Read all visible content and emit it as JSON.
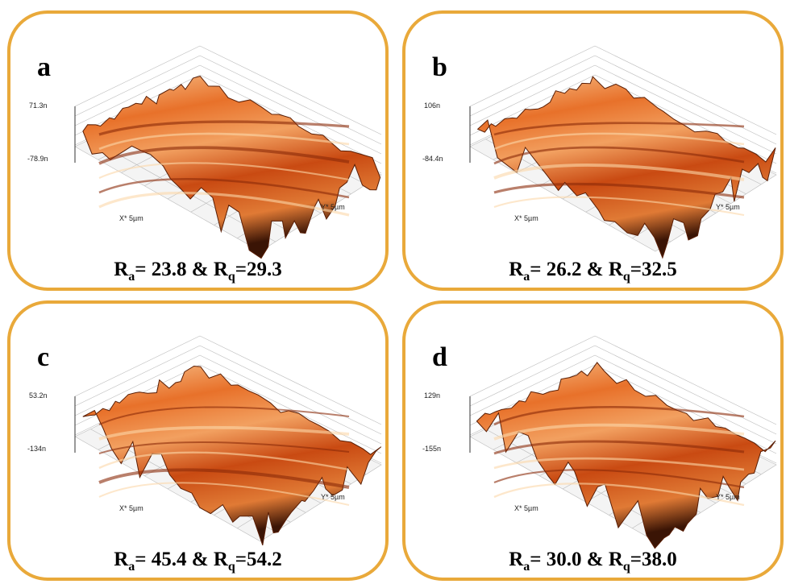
{
  "panels": [
    {
      "label": "a",
      "z_top": "71.3n",
      "z_bottom": "-78.9n",
      "x_axis": "X* 5µm",
      "y_axis": "Y* 5µm",
      "caption": {
        "r1": "R",
        "sub1": "a",
        "mid": "= 23.8 & R",
        "sub2": "q",
        "end": "=29.3"
      }
    },
    {
      "label": "b",
      "z_top": "106n",
      "z_bottom": "-84.4n",
      "x_axis": "X* 5µm",
      "y_axis": "Y* 5µm",
      "caption": {
        "r1": "R",
        "sub1": "a",
        "mid": "= 26.2 & R",
        "sub2": "q",
        "end": "=32.5"
      }
    },
    {
      "label": "c",
      "z_top": "53.2n",
      "z_bottom": "-134n",
      "x_axis": "X* 5µm",
      "y_axis": "Y* 5µm",
      "caption": {
        "r1": "R",
        "sub1": "a",
        "mid": "= 45.4 & R",
        "sub2": "q",
        "end": "=54.2"
      }
    },
    {
      "label": "d",
      "z_top": "129n",
      "z_bottom": "-155n",
      "x_axis": "X* 5µm",
      "y_axis": "Y* 5µm",
      "caption": {
        "r1": "R",
        "sub1": "a",
        "mid": "= 30.0 & R",
        "sub2": "q",
        "end": "=38.0"
      }
    }
  ]
}
